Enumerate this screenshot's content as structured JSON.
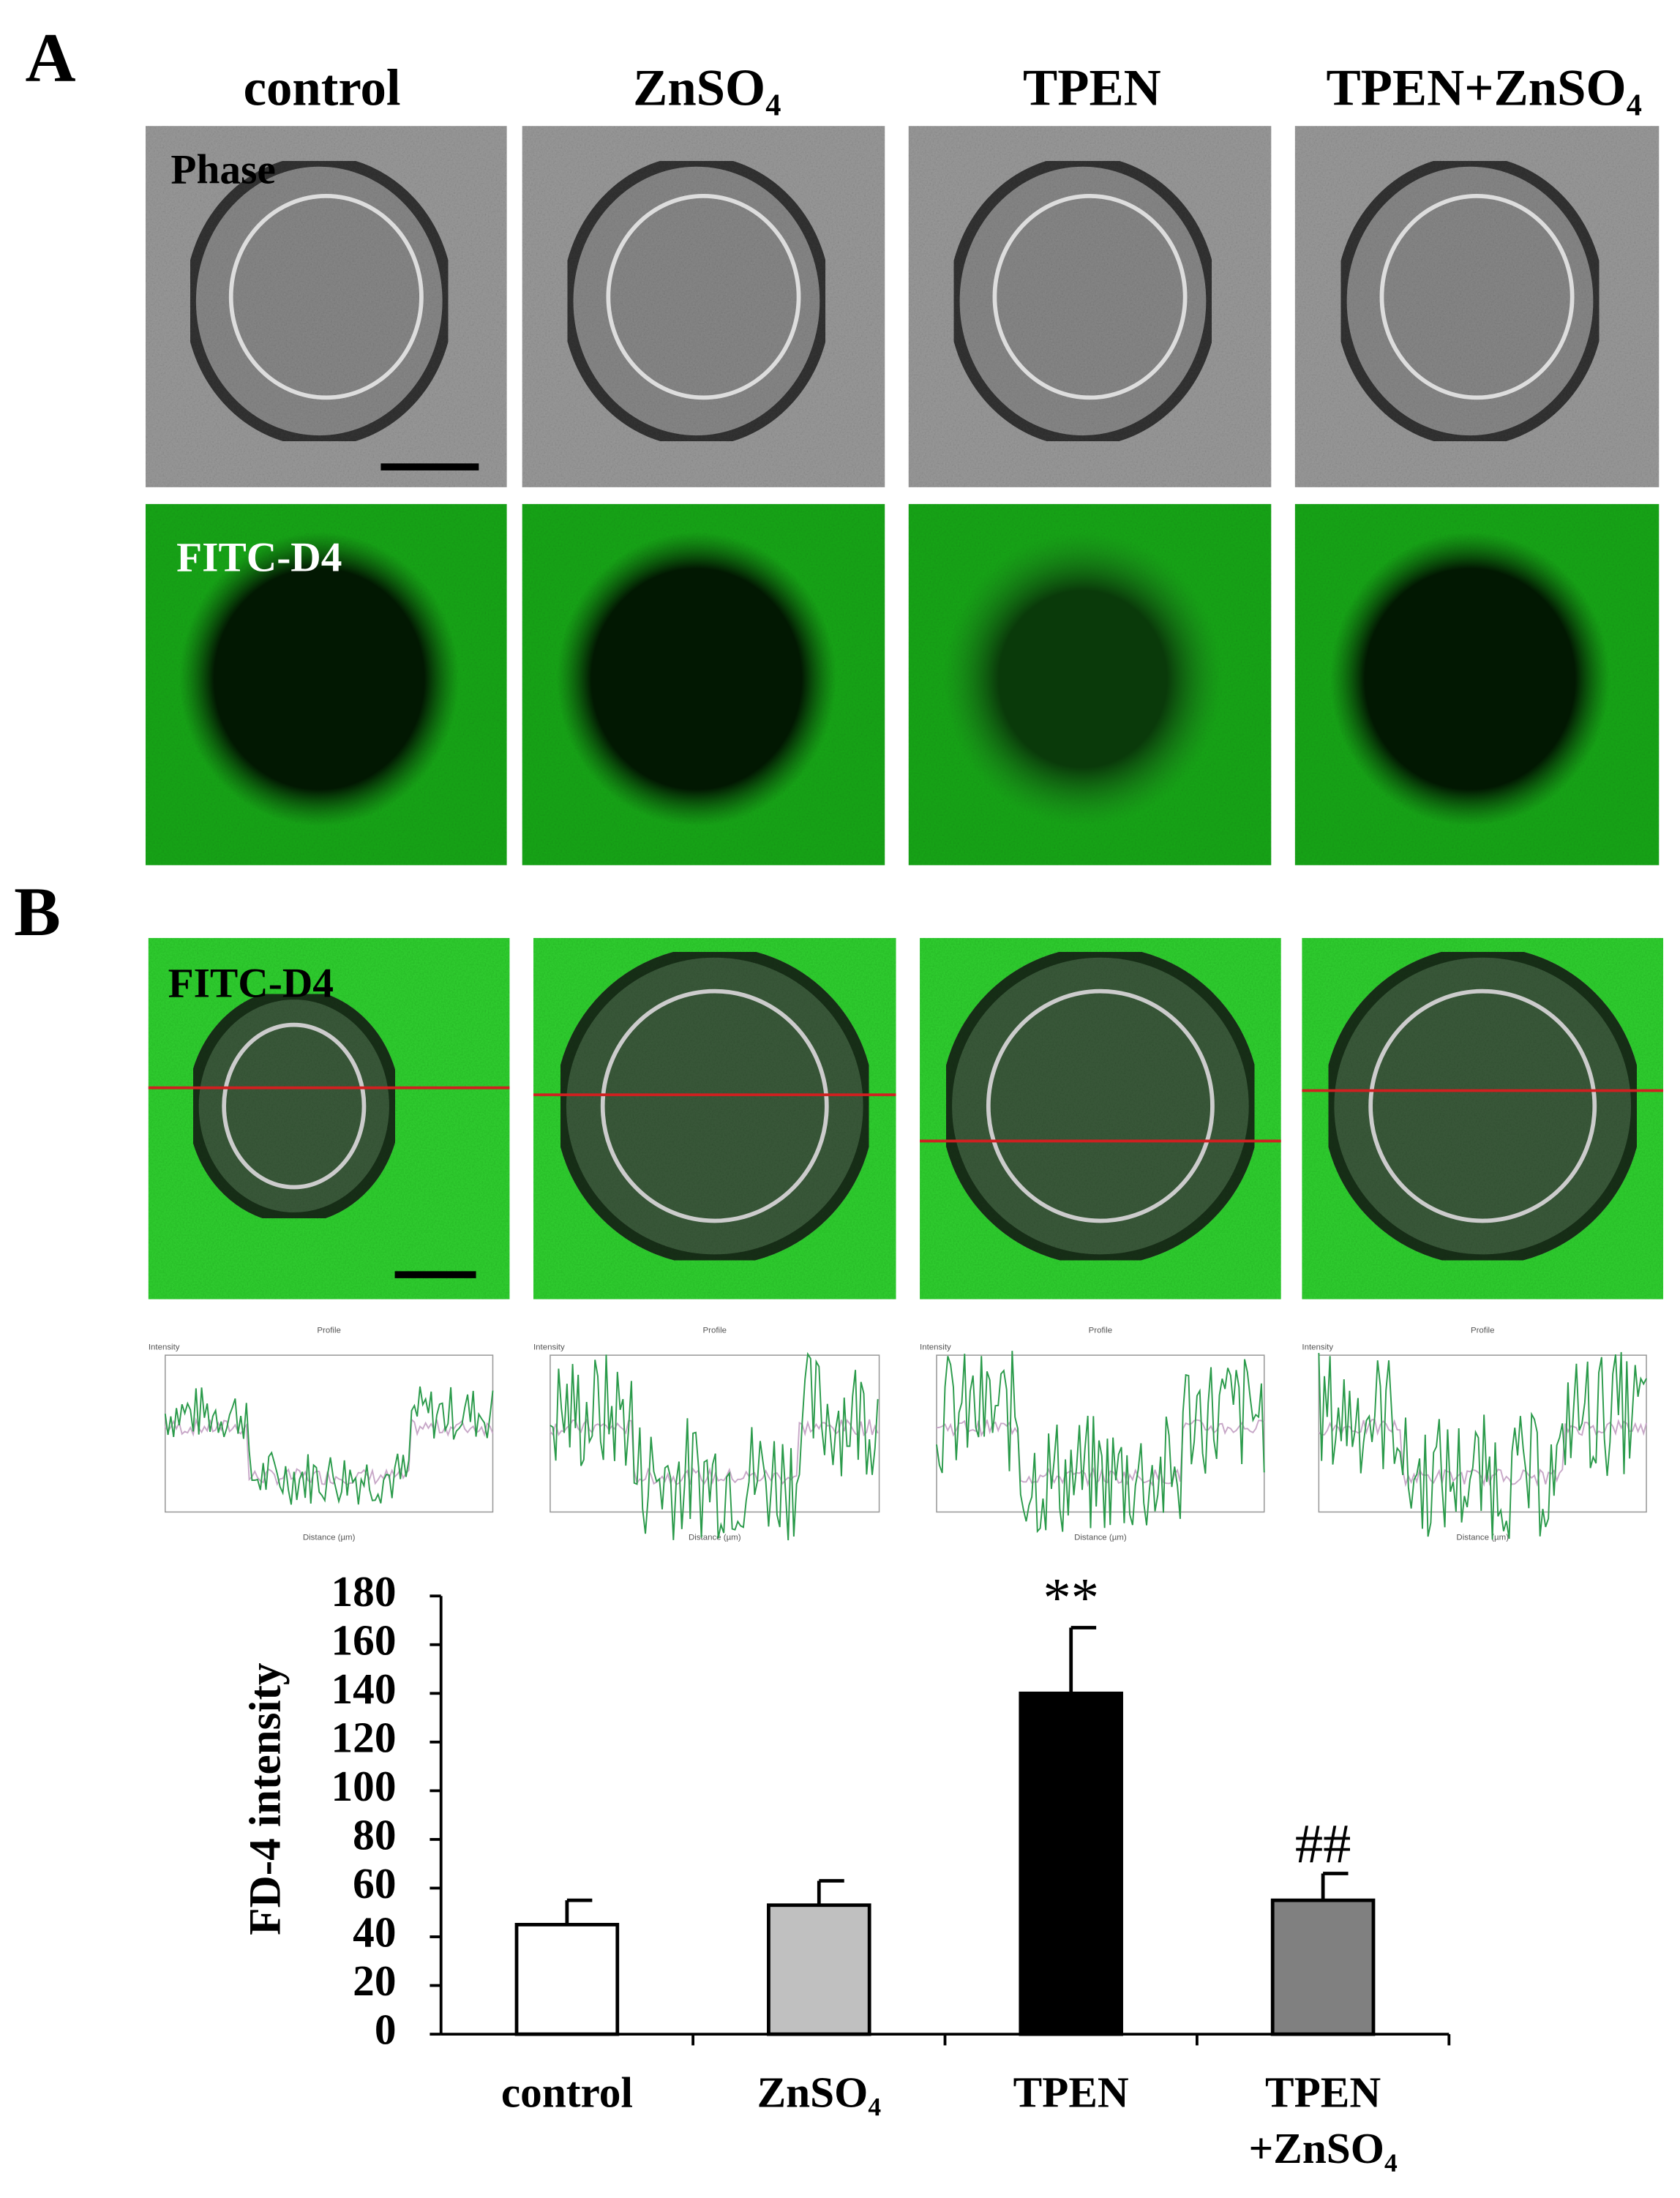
{
  "panels": {
    "label_a": "A",
    "label_b": "B",
    "columns": [
      "control",
      "ZnSO₄",
      "TPEN",
      "TPEN+ZnSO₄"
    ],
    "row_labels": [
      "Phase",
      "FITC-D4"
    ],
    "overlay_label": "FITC-D4",
    "profile": {
      "title": "Profile",
      "ylabel": "Intensity",
      "xlabel": "Distance (µm)"
    }
  },
  "chart_data": {
    "type": "bar",
    "ylabel": "FD-4 intensity",
    "categories": [
      "control",
      "ZnSO₄",
      "TPEN",
      "TPEN\n+ZnSO₄"
    ],
    "values": [
      45,
      53,
      140,
      55
    ],
    "errors": [
      10,
      10,
      27,
      11
    ],
    "colors": [
      "#ffffff",
      "#c0c0c0",
      "#000000",
      "#808080"
    ],
    "annotations": [
      null,
      null,
      "**",
      "##"
    ],
    "ylim": [
      0,
      180
    ],
    "yticks": [
      0,
      20,
      40,
      60,
      80,
      100,
      120,
      140,
      160,
      180
    ]
  }
}
